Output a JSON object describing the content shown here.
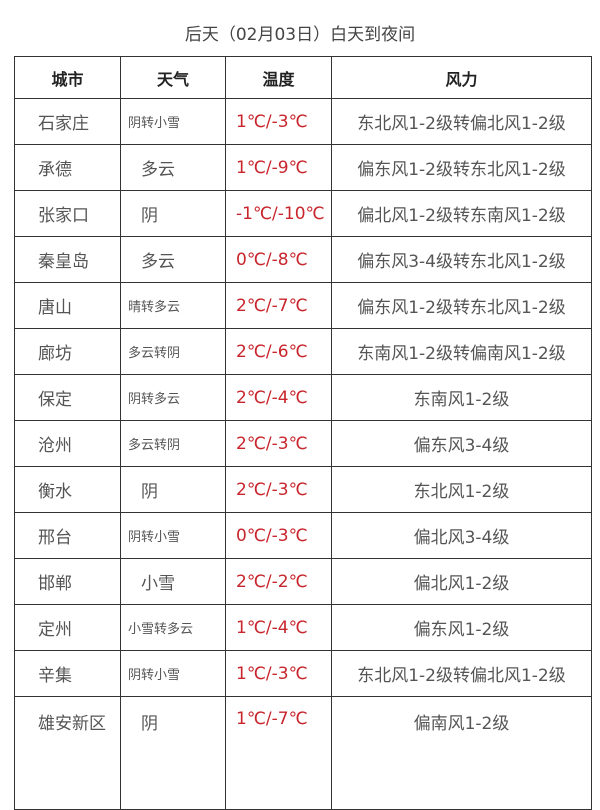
{
  "title": "后天（02月03日）白天到夜间",
  "headers": [
    "城市",
    "天气",
    "温度",
    "风力"
  ],
  "colors": {
    "temperature": "#c8252c",
    "text": "#555555"
  },
  "rows": [
    {
      "city": "石家庄",
      "weather": "阴转小雪",
      "temp": "1℃/-3℃",
      "wind": "东北风1-2级转偏北风1-2级"
    },
    {
      "city": "承德",
      "weather": "多云",
      "temp": "1℃/-9℃",
      "wind": "偏东风1-2级转东北风1-2级"
    },
    {
      "city": "张家口",
      "weather": "阴",
      "temp": "-1℃/-10℃",
      "wind": "偏北风1-2级转东南风1-2级"
    },
    {
      "city": "秦皇岛",
      "weather": "多云",
      "temp": "0℃/-8℃",
      "wind": "偏东风3-4级转东北风1-2级"
    },
    {
      "city": "唐山",
      "weather": "晴转多云",
      "temp": "2℃/-7℃",
      "wind": "偏东风1-2级转东北风1-2级"
    },
    {
      "city": "廊坊",
      "weather": "多云转阴",
      "temp": "2℃/-6℃",
      "wind": "东南风1-2级转偏南风1-2级"
    },
    {
      "city": "保定",
      "weather": "阴转多云",
      "temp": "2℃/-4℃",
      "wind": "东南风1-2级"
    },
    {
      "city": "沧州",
      "weather": "多云转阴",
      "temp": "2℃/-3℃",
      "wind": "偏东风3-4级"
    },
    {
      "city": "衡水",
      "weather": "阴",
      "temp": "2℃/-3℃",
      "wind": "东北风1-2级"
    },
    {
      "city": "邢台",
      "weather": "阴转小雪",
      "temp": "0℃/-3℃",
      "wind": "偏北风3-4级"
    },
    {
      "city": "邯郸",
      "weather": "小雪",
      "temp": "2℃/-2℃",
      "wind": "偏北风1-2级"
    },
    {
      "city": "定州",
      "weather": "小雪转多云",
      "temp": "1℃/-4℃",
      "wind": "偏东风1-2级"
    },
    {
      "city": "辛集",
      "weather": "阴转小雪",
      "temp": "1℃/-3℃",
      "wind": "东北风1-2级转偏北风1-2级"
    },
    {
      "city": "雄安新区",
      "weather": "阴",
      "temp": "1℃/-7℃",
      "wind": "偏南风1-2级"
    }
  ]
}
